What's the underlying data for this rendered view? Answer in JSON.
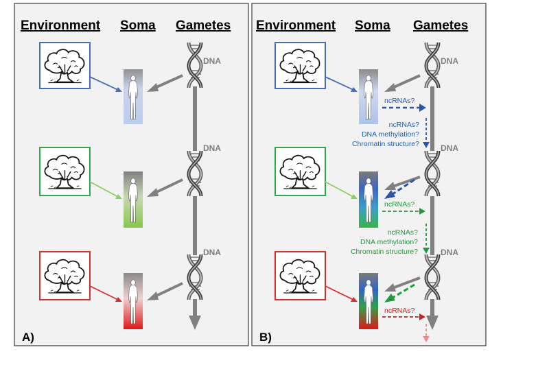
{
  "headers": {
    "environment": "Environment",
    "soma": "Soma",
    "gametes": "Gametes"
  },
  "dna_label": "DNA",
  "panel_a": {
    "label": "A)"
  },
  "panel_b": {
    "label": "B)",
    "ncrnas_blue": "ncRNAs?",
    "germline_blue": [
      "ncRNAs?",
      "DNA methylation?",
      "Chromatin structure?"
    ],
    "ncrnas_green": "ncRNAs?",
    "germline_green": [
      "ncRNAs?",
      "DNA methylation?",
      "Chromatin structure?"
    ],
    "ncrnas_red": "ncRNAs?"
  },
  "colors": {
    "generation_1": "#4a6db5",
    "generation_2": "#8fce5a",
    "generation_3": "#d92e2e",
    "mechanism_blue": "#2a56a8",
    "mechanism_green": "#1f9a3c",
    "mechanism_red": "#cc1f1f",
    "arrow_grey": "#808080"
  },
  "icons": [
    "tree-icon",
    "human-figure-icon",
    "dna-helix-icon"
  ]
}
